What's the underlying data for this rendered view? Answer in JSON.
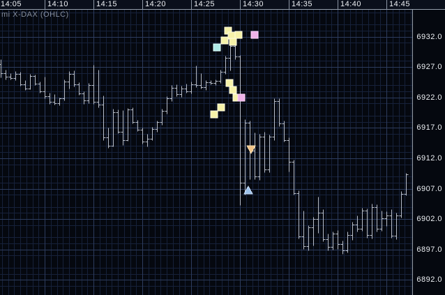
{
  "window": {
    "instrument_label": "mi X-DAX (OHLC)"
  },
  "colors": {
    "background": "#05080f",
    "axis_strip_bg": "#0a0f1b",
    "axis_text": "#eef1f5",
    "axis_border": "#96a0ad",
    "grid_minor": "#16213a",
    "grid_major": "#2d3c5e",
    "bar": "#b7bdc9",
    "square_yellow_fill": "#f6f2a8",
    "square_yellow_border": "#fffce4",
    "square_pink_fill": "#eeb2e8",
    "square_pink_border": "#fbd8f8",
    "square_cyan_fill": "#aeeae6",
    "square_cyan_border": "#e2fffc",
    "triangle_orange_fill": "#f2c488",
    "triangle_orange_border": "#f8dfb2",
    "triangle_blue_fill": "#9cc2ec",
    "triangle_blue_border": "#cfe3fa",
    "instrument_label_text": "#858d9d"
  },
  "chart_data": {
    "type": "ohlc",
    "title": "mi X-DAX (OHLC)",
    "bar_interval_seconds": 30,
    "x_axis": {
      "position": "top",
      "start_time": "14:05",
      "end_time": "14:45",
      "tick_labels": [
        "14:05",
        "14:10",
        "14:15",
        "14:20",
        "14:25",
        "14:30",
        "14:35",
        "14:40",
        "14:45"
      ]
    },
    "y_axis": {
      "position": "right",
      "tick_labels": [
        "6932.0",
        "6927.0",
        "6922.0",
        "6917.0",
        "6912.0",
        "6907.0",
        "6902.0",
        "6897.0",
        "6892.0"
      ],
      "visible_min": 6889.5,
      "visible_max": 6936.5,
      "grid_step_minor": 1,
      "grid_step_major": 5
    },
    "bars": [
      {
        "t": "14:05:30",
        "o": 6927.5,
        "h": 6928.3,
        "l": 6925.3,
        "c": 6926.0
      },
      {
        "t": "14:06:00",
        "o": 6926.0,
        "h": 6926.6,
        "l": 6925.0,
        "c": 6925.4
      },
      {
        "t": "14:06:30",
        "o": 6925.4,
        "h": 6926.0,
        "l": 6924.9,
        "c": 6925.2
      },
      {
        "t": "14:07:00",
        "o": 6925.2,
        "h": 6926.3,
        "l": 6924.8,
        "c": 6925.9
      },
      {
        "t": "14:07:30",
        "o": 6925.9,
        "h": 6926.2,
        "l": 6923.9,
        "c": 6924.2
      },
      {
        "t": "14:08:00",
        "o": 6924.2,
        "h": 6924.8,
        "l": 6923.2,
        "c": 6923.5
      },
      {
        "t": "14:08:30",
        "o": 6923.5,
        "h": 6925.9,
        "l": 6923.3,
        "c": 6925.5
      },
      {
        "t": "14:09:00",
        "o": 6925.5,
        "h": 6925.8,
        "l": 6924.0,
        "c": 6924.3
      },
      {
        "t": "14:09:30",
        "o": 6924.3,
        "h": 6924.6,
        "l": 6922.8,
        "c": 6923.0
      },
      {
        "t": "14:10:00",
        "o": 6923.0,
        "h": 6925.4,
        "l": 6921.9,
        "c": 6922.2
      },
      {
        "t": "14:10:30",
        "o": 6922.2,
        "h": 6922.8,
        "l": 6920.9,
        "c": 6921.3
      },
      {
        "t": "14:11:00",
        "o": 6921.3,
        "h": 6922.5,
        "l": 6920.8,
        "c": 6921.0
      },
      {
        "t": "14:11:30",
        "o": 6921.0,
        "h": 6922.0,
        "l": 6920.7,
        "c": 6921.8
      },
      {
        "t": "14:12:00",
        "o": 6921.8,
        "h": 6925.0,
        "l": 6921.5,
        "c": 6924.6
      },
      {
        "t": "14:12:30",
        "o": 6924.6,
        "h": 6926.3,
        "l": 6923.4,
        "c": 6925.9
      },
      {
        "t": "14:13:00",
        "o": 6925.9,
        "h": 6926.4,
        "l": 6923.8,
        "c": 6924.1
      },
      {
        "t": "14:13:30",
        "o": 6924.1,
        "h": 6924.5,
        "l": 6922.4,
        "c": 6922.7
      },
      {
        "t": "14:14:00",
        "o": 6922.7,
        "h": 6923.0,
        "l": 6920.9,
        "c": 6921.5
      },
      {
        "t": "14:14:30",
        "o": 6921.5,
        "h": 6924.4,
        "l": 6921.0,
        "c": 6924.0
      },
      {
        "t": "14:15:00",
        "o": 6924.0,
        "h": 6927.3,
        "l": 6920.9,
        "c": 6921.3
      },
      {
        "t": "14:15:30",
        "o": 6921.3,
        "h": 6926.5,
        "l": 6920.4,
        "c": 6920.8
      },
      {
        "t": "14:16:00",
        "o": 6920.8,
        "h": 6922.3,
        "l": 6915.0,
        "c": 6915.4
      },
      {
        "t": "14:16:30",
        "o": 6915.4,
        "h": 6917.0,
        "l": 6913.7,
        "c": 6914.0
      },
      {
        "t": "14:17:00",
        "o": 6914.0,
        "h": 6920.1,
        "l": 6913.9,
        "c": 6919.6
      },
      {
        "t": "14:17:30",
        "o": 6919.6,
        "h": 6920.0,
        "l": 6916.1,
        "c": 6916.4
      },
      {
        "t": "14:18:00",
        "o": 6916.4,
        "h": 6919.9,
        "l": 6914.2,
        "c": 6915.0
      },
      {
        "t": "14:18:30",
        "o": 6915.0,
        "h": 6920.3,
        "l": 6914.9,
        "c": 6920.0
      },
      {
        "t": "14:19:00",
        "o": 6920.0,
        "h": 6920.4,
        "l": 6917.7,
        "c": 6918.0
      },
      {
        "t": "14:19:30",
        "o": 6918.0,
        "h": 6918.3,
        "l": 6916.5,
        "c": 6916.7
      },
      {
        "t": "14:20:00",
        "o": 6916.7,
        "h": 6917.0,
        "l": 6914.4,
        "c": 6914.7
      },
      {
        "t": "14:20:30",
        "o": 6914.7,
        "h": 6916.0,
        "l": 6913.9,
        "c": 6915.2
      },
      {
        "t": "14:21:00",
        "o": 6915.2,
        "h": 6917.1,
        "l": 6915.0,
        "c": 6916.8
      },
      {
        "t": "14:21:30",
        "o": 6916.8,
        "h": 6918.2,
        "l": 6916.4,
        "c": 6917.9
      },
      {
        "t": "14:22:00",
        "o": 6917.9,
        "h": 6920.1,
        "l": 6917.5,
        "c": 6919.8
      },
      {
        "t": "14:22:30",
        "o": 6919.8,
        "h": 6922.2,
        "l": 6919.3,
        "c": 6921.9
      },
      {
        "t": "14:23:00",
        "o": 6921.9,
        "h": 6924.0,
        "l": 6921.4,
        "c": 6923.6
      },
      {
        "t": "14:23:30",
        "o": 6923.6,
        "h": 6924.2,
        "l": 6922.2,
        "c": 6922.5
      },
      {
        "t": "14:24:00",
        "o": 6922.5,
        "h": 6923.9,
        "l": 6922.1,
        "c": 6923.5
      },
      {
        "t": "14:24:30",
        "o": 6923.5,
        "h": 6924.3,
        "l": 6922.8,
        "c": 6923.0
      },
      {
        "t": "14:25:00",
        "o": 6923.0,
        "h": 6924.6,
        "l": 6922.6,
        "c": 6924.2
      },
      {
        "t": "14:25:30",
        "o": 6924.2,
        "h": 6927.2,
        "l": 6923.7,
        "c": 6924.0
      },
      {
        "t": "14:26:00",
        "o": 6924.0,
        "h": 6926.0,
        "l": 6923.4,
        "c": 6923.7
      },
      {
        "t": "14:26:30",
        "o": 6923.7,
        "h": 6924.8,
        "l": 6923.2,
        "c": 6924.5
      },
      {
        "t": "14:27:00",
        "o": 6924.5,
        "h": 6924.8,
        "l": 6924.1,
        "c": 6924.4
      },
      {
        "t": "14:27:30",
        "o": 6924.4,
        "h": 6924.9,
        "l": 6924.0,
        "c": 6924.7
      },
      {
        "t": "14:28:00",
        "o": 6924.7,
        "h": 6926.5,
        "l": 6924.4,
        "c": 6926.2
      },
      {
        "t": "14:28:30",
        "o": 6926.2,
        "h": 6928.9,
        "l": 6925.9,
        "c": 6928.5
      },
      {
        "t": "14:29:00",
        "o": 6928.5,
        "h": 6931.0,
        "l": 6926.4,
        "c": 6930.5
      },
      {
        "t": "14:29:30",
        "o": 6930.5,
        "h": 6931.3,
        "l": 6928.3,
        "c": 6928.7
      },
      {
        "t": "14:30:00",
        "o": 6928.7,
        "h": 6929.0,
        "l": 6904.3,
        "c": 6908.0
      },
      {
        "t": "14:30:30",
        "o": 6908.0,
        "h": 6918.4,
        "l": 6906.0,
        "c": 6917.8
      },
      {
        "t": "14:31:00",
        "o": 6917.8,
        "h": 6918.2,
        "l": 6908.6,
        "c": 6913.2
      },
      {
        "t": "14:31:30",
        "o": 6913.2,
        "h": 6916.2,
        "l": 6908.5,
        "c": 6909.0
      },
      {
        "t": "14:32:00",
        "o": 6909.0,
        "h": 6916.0,
        "l": 6908.4,
        "c": 6915.6
      },
      {
        "t": "14:32:30",
        "o": 6915.6,
        "h": 6916.3,
        "l": 6909.7,
        "c": 6910.1
      },
      {
        "t": "14:33:00",
        "o": 6910.1,
        "h": 6915.9,
        "l": 6909.7,
        "c": 6915.5
      },
      {
        "t": "14:33:30",
        "o": 6915.5,
        "h": 6921.8,
        "l": 6915.0,
        "c": 6921.4
      },
      {
        "t": "14:34:00",
        "o": 6921.4,
        "h": 6921.8,
        "l": 6917.3,
        "c": 6917.7
      },
      {
        "t": "14:34:30",
        "o": 6917.7,
        "h": 6918.2,
        "l": 6914.7,
        "c": 6915.0
      },
      {
        "t": "14:35:00",
        "o": 6915.0,
        "h": 6915.4,
        "l": 6909.8,
        "c": 6911.4
      },
      {
        "t": "14:35:30",
        "o": 6911.4,
        "h": 6911.8,
        "l": 6906.0,
        "c": 6906.3
      },
      {
        "t": "14:36:00",
        "o": 6906.3,
        "h": 6906.7,
        "l": 6898.8,
        "c": 6899.2
      },
      {
        "t": "14:36:30",
        "o": 6899.2,
        "h": 6903.4,
        "l": 6897.1,
        "c": 6897.5
      },
      {
        "t": "14:37:00",
        "o": 6897.5,
        "h": 6901.0,
        "l": 6896.9,
        "c": 6900.6
      },
      {
        "t": "14:37:30",
        "o": 6900.6,
        "h": 6902.4,
        "l": 6897.7,
        "c": 6902.0
      },
      {
        "t": "14:38:00",
        "o": 6902.0,
        "h": 6905.7,
        "l": 6899.7,
        "c": 6903.1
      },
      {
        "t": "14:38:30",
        "o": 6903.1,
        "h": 6903.6,
        "l": 6898.3,
        "c": 6898.7
      },
      {
        "t": "14:39:00",
        "o": 6898.7,
        "h": 6899.6,
        "l": 6896.8,
        "c": 6897.4
      },
      {
        "t": "14:39:30",
        "o": 6897.4,
        "h": 6900.0,
        "l": 6897.0,
        "c": 6899.6
      },
      {
        "t": "14:40:00",
        "o": 6899.6,
        "h": 6900.2,
        "l": 6897.1,
        "c": 6897.9
      },
      {
        "t": "14:40:30",
        "o": 6897.9,
        "h": 6898.5,
        "l": 6896.3,
        "c": 6896.8
      },
      {
        "t": "14:41:00",
        "o": 6896.8,
        "h": 6899.9,
        "l": 6896.5,
        "c": 6899.4
      },
      {
        "t": "14:41:30",
        "o": 6899.4,
        "h": 6901.6,
        "l": 6898.6,
        "c": 6901.1
      },
      {
        "t": "14:42:00",
        "o": 6901.1,
        "h": 6902.6,
        "l": 6899.9,
        "c": 6900.4
      },
      {
        "t": "14:42:30",
        "o": 6900.4,
        "h": 6903.9,
        "l": 6900.1,
        "c": 6903.4
      },
      {
        "t": "14:43:00",
        "o": 6903.4,
        "h": 6903.7,
        "l": 6898.9,
        "c": 6899.4
      },
      {
        "t": "14:43:30",
        "o": 6899.4,
        "h": 6904.5,
        "l": 6898.8,
        "c": 6904.0
      },
      {
        "t": "14:44:00",
        "o": 6904.0,
        "h": 6904.4,
        "l": 6900.0,
        "c": 6900.4
      },
      {
        "t": "14:44:30",
        "o": 6900.4,
        "h": 6903.4,
        "l": 6900.1,
        "c": 6902.1
      },
      {
        "t": "14:45:00",
        "o": 6902.1,
        "h": 6903.3,
        "l": 6900.9,
        "c": 6902.6
      },
      {
        "t": "14:45:30",
        "o": 6902.6,
        "h": 6903.6,
        "l": 6898.9,
        "c": 6899.3
      },
      {
        "t": "14:46:00",
        "o": 6899.3,
        "h": 6903.1,
        "l": 6898.7,
        "c": 6902.6
      },
      {
        "t": "14:46:30",
        "o": 6902.6,
        "h": 6906.6,
        "l": 6902.2,
        "c": 6906.1
      },
      {
        "t": "14:47:00",
        "o": 6906.1,
        "h": 6909.6,
        "l": 6905.9,
        "c": 6909.3
      }
    ],
    "markers": {
      "squares": [
        {
          "t": "14:27:20",
          "price": 6919.2,
          "color": "yellow"
        },
        {
          "t": "14:27:40",
          "price": 6930.2,
          "color": "cyan"
        },
        {
          "t": "14:28:05",
          "price": 6920.4,
          "color": "yellow"
        },
        {
          "t": "14:28:25",
          "price": 6931.4,
          "color": "yellow"
        },
        {
          "t": "14:28:45",
          "price": 6933.0,
          "color": "yellow"
        },
        {
          "t": "14:28:55",
          "price": 6924.4,
          "color": "yellow"
        },
        {
          "t": "14:29:10",
          "price": 6932.2,
          "color": "yellow"
        },
        {
          "t": "14:29:15",
          "price": 6931.1,
          "color": "yellow"
        },
        {
          "t": "14:29:15",
          "price": 6923.2,
          "color": "yellow"
        },
        {
          "t": "14:29:40",
          "price": 6922.0,
          "color": "yellow"
        },
        {
          "t": "14:29:50",
          "price": 6932.3,
          "color": "yellow"
        },
        {
          "t": "14:30:10",
          "price": 6922.0,
          "color": "pink"
        },
        {
          "t": "14:31:30",
          "price": 6932.3,
          "color": "pink"
        }
      ],
      "triangles": [
        {
          "t": "14:31:10",
          "price": 6913.5,
          "direction": "down",
          "color": "orange"
        },
        {
          "t": "14:30:50",
          "price": 6906.7,
          "direction": "up",
          "color": "blue"
        }
      ]
    }
  }
}
